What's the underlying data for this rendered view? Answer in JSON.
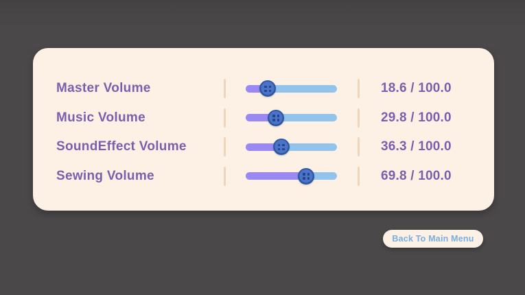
{
  "panel": {
    "rows": [
      {
        "label": "Master Volume",
        "value": 18.6,
        "max": 100.0,
        "value_text": "18.6 / 100.0"
      },
      {
        "label": "Music Volume",
        "value": 29.8,
        "max": 100.0,
        "value_text": "29.8 / 100.0"
      },
      {
        "label": "SoundEffect Volume",
        "value": 36.3,
        "max": 100.0,
        "value_text": "36.3 / 100.0"
      },
      {
        "label": "Sewing Volume",
        "value": 69.8,
        "max": 100.0,
        "value_text": "69.8 / 100.0"
      }
    ]
  },
  "back_button": {
    "label": "Back To Main Menu"
  },
  "icons": {
    "slider_thumb": "sewing-button-icon"
  },
  "colors": {
    "bg": "#4a4848",
    "panel": "#fcf1e4",
    "text": "#7c5ead",
    "dash": "#f0d5bc",
    "track": "#92c3ec",
    "fill": "#9b89f3",
    "thumb-outer": "#2b56a2",
    "thumb-inner": "#4c73c6",
    "thumb-hole": "#1e4490",
    "button-text": "#79aee2"
  }
}
